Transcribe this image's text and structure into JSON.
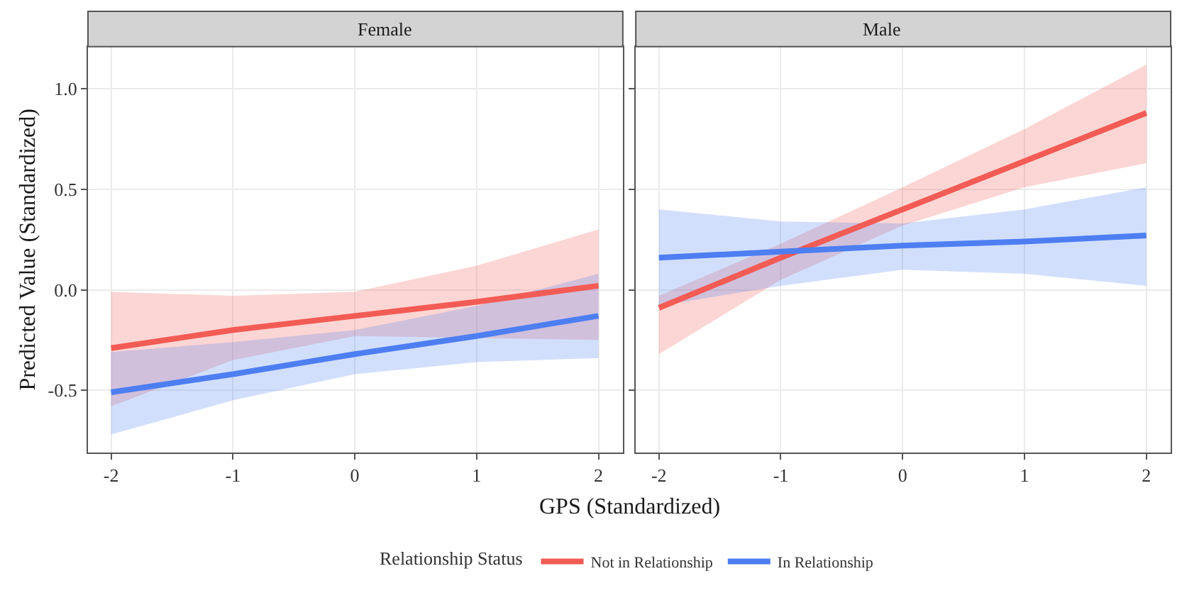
{
  "chart_data": [
    {
      "type": "line",
      "title": "Female",
      "xlabel": "GPS (Standardized)",
      "ylabel": "Predicted Value (Standardized)",
      "legend_title": "Relationship Status",
      "legend": "bottom",
      "grid": true,
      "x": [
        -2,
        -1,
        0,
        1,
        2
      ],
      "xlim": [
        -2.19,
        2.2
      ],
      "ylim": [
        -0.81,
        1.21
      ],
      "xticks": [
        -2,
        -1,
        0,
        1,
        2
      ],
      "yticks": [
        {
          "value": -0.5,
          "label": "-0.5"
        },
        {
          "value": 0,
          "label": "0.0"
        },
        {
          "value": 0.5,
          "label": "0.5"
        },
        {
          "value": 1,
          "label": "1.0"
        }
      ],
      "series": [
        {
          "name": "Not in Relationship",
          "color": "#f35b55",
          "values": [
            -0.29,
            -0.2,
            -0.13,
            -0.06,
            0.02
          ],
          "lower": [
            -0.58,
            -0.35,
            -0.23,
            -0.24,
            -0.25
          ],
          "upper": [
            -0.01,
            -0.03,
            -0.01,
            0.12,
            0.3
          ]
        },
        {
          "name": "In Relationship",
          "color": "#4d7ef2",
          "values": [
            -0.51,
            -0.42,
            -0.32,
            -0.23,
            -0.13
          ],
          "lower": [
            -0.72,
            -0.55,
            -0.42,
            -0.36,
            -0.34
          ],
          "upper": [
            -0.31,
            -0.26,
            -0.2,
            -0.08,
            0.08
          ]
        }
      ]
    },
    {
      "type": "line",
      "title": "Male",
      "grid": true,
      "tick_labels": "x",
      "x": [
        -2,
        -1,
        0,
        1,
        2
      ],
      "xlim": [
        -2.19,
        2.2
      ],
      "ylim": [
        -0.81,
        1.21
      ],
      "xticks": [
        -2,
        -1,
        0,
        1,
        2
      ],
      "yticks": [
        {
          "value": -0.5,
          "label": null
        },
        {
          "value": 0,
          "label": null
        },
        {
          "value": 0.5,
          "label": null
        },
        {
          "value": 1,
          "label": null
        }
      ],
      "series": [
        {
          "name": "Not in Relationship",
          "color": "#f35b55",
          "values": [
            -0.09,
            0.16,
            0.4,
            0.64,
            0.88
          ],
          "lower": [
            -0.32,
            0.05,
            0.32,
            0.51,
            0.63
          ],
          "upper": [
            -0.03,
            0.23,
            0.51,
            0.8,
            1.12
          ]
        },
        {
          "name": "In Relationship",
          "color": "#4d7ef2",
          "values": [
            0.16,
            0.19,
            0.22,
            0.24,
            0.27
          ],
          "lower": [
            -0.08,
            0.02,
            0.1,
            0.08,
            0.02
          ],
          "upper": [
            0.4,
            0.34,
            0.33,
            0.4,
            0.51
          ]
        }
      ]
    }
  ]
}
